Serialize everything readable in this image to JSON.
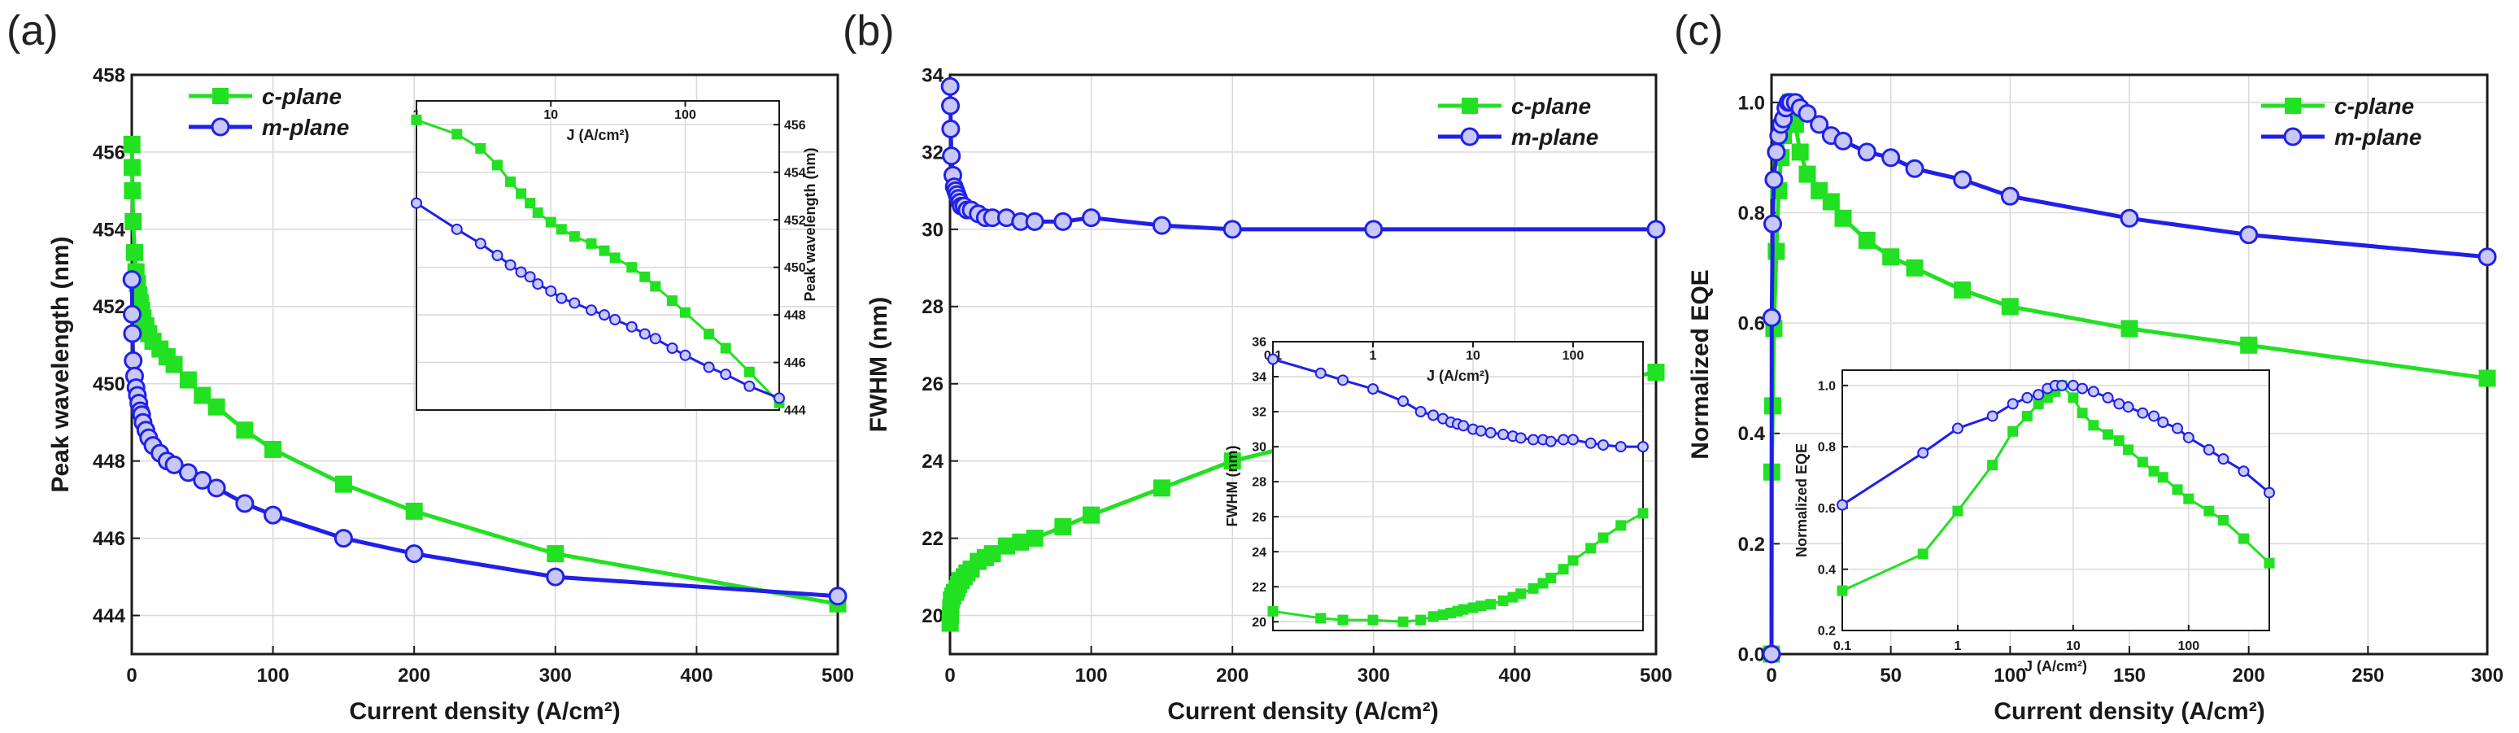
{
  "colors": {
    "c_plane": "#22e022",
    "m_plane": "#2020e8",
    "grid": "#d9d9d9",
    "axis": "#1a1a1a"
  },
  "chart_data": [
    {
      "panel": "(a)",
      "type": "line",
      "xlabel": "Current density (A/cm²)",
      "ylabel": "Peak wavelength (nm)",
      "xlim": [
        0,
        500
      ],
      "ylim": [
        443,
        458
      ],
      "xticks": [
        "0",
        "100",
        "200",
        "300",
        "400",
        "500"
      ],
      "yticks": [
        "444",
        "446",
        "448",
        "450",
        "452",
        "454",
        "456",
        "458"
      ],
      "legend": {
        "position": "top-left",
        "entries": [
          "c-plane",
          "m-plane"
        ]
      },
      "series": [
        {
          "name": "c-plane",
          "x": [
            0.1,
            0.3,
            0.5,
            1,
            2,
            3,
            4,
            5,
            6,
            7,
            8,
            10,
            12,
            15,
            20,
            25,
            30,
            40,
            50,
            60,
            80,
            100,
            150,
            200,
            300,
            500
          ],
          "y": [
            456.2,
            455.6,
            455.0,
            454.2,
            453.4,
            452.9,
            452.6,
            452.3,
            452.1,
            451.9,
            451.7,
            451.5,
            451.3,
            451.1,
            450.9,
            450.7,
            450.5,
            450.1,
            449.7,
            449.4,
            448.8,
            448.3,
            447.4,
            446.7,
            445.6,
            444.3
          ]
        },
        {
          "name": "m-plane",
          "x": [
            0.1,
            0.3,
            0.5,
            1,
            2,
            3,
            4,
            5,
            6,
            7,
            8,
            10,
            12,
            15,
            20,
            25,
            30,
            40,
            50,
            60,
            80,
            100,
            150,
            200,
            300,
            500
          ],
          "y": [
            452.7,
            451.8,
            451.3,
            450.6,
            450.2,
            449.9,
            449.7,
            449.5,
            449.3,
            449.2,
            449.0,
            448.8,
            448.6,
            448.4,
            448.2,
            448.0,
            447.9,
            447.7,
            447.5,
            447.3,
            446.9,
            446.6,
            446.0,
            445.6,
            445.0,
            444.5
          ]
        }
      ],
      "inset": {
        "xlabel": "J (A/cm²)",
        "ylabel": "Peak wavelength (nm)",
        "xscale": "log",
        "xlim": [
          1,
          500
        ],
        "ylim": [
          444,
          457
        ],
        "xticks": [
          "1",
          "10",
          "100"
        ],
        "yticks": [
          "444",
          "446",
          "448",
          "450",
          "452",
          "454",
          "456"
        ],
        "series": [
          {
            "name": "c-plane",
            "x": [
              1,
              2,
              3,
              4,
              5,
              6,
              7,
              8,
              10,
              12,
              15,
              20,
              25,
              30,
              40,
              50,
              60,
              80,
              100,
              150,
              200,
              300,
              500
            ],
            "y": [
              456.2,
              455.6,
              455.0,
              454.3,
              453.6,
              453.1,
              452.7,
              452.3,
              451.9,
              451.6,
              451.3,
              451.0,
              450.7,
              450.4,
              450.0,
              449.6,
              449.2,
              448.6,
              448.1,
              447.2,
              446.6,
              445.6,
              444.3
            ]
          },
          {
            "name": "m-plane",
            "x": [
              1,
              2,
              3,
              4,
              5,
              6,
              7,
              8,
              10,
              12,
              15,
              20,
              25,
              30,
              40,
              50,
              60,
              80,
              100,
              150,
              200,
              300,
              500
            ],
            "y": [
              452.7,
              451.6,
              451.0,
              450.5,
              450.1,
              449.8,
              449.6,
              449.3,
              449.0,
              448.7,
              448.5,
              448.2,
              448.0,
              447.8,
              447.5,
              447.2,
              447.0,
              446.6,
              446.3,
              445.8,
              445.5,
              445.0,
              444.5
            ]
          }
        ]
      }
    },
    {
      "panel": "(b)",
      "type": "line",
      "xlabel": "Current density (A/cm²)",
      "ylabel": "FWHM (nm)",
      "xlim": [
        0,
        500
      ],
      "ylim": [
        19,
        34
      ],
      "xticks": [
        "0",
        "100",
        "200",
        "300",
        "400",
        "500"
      ],
      "yticks": [
        "20",
        "22",
        "24",
        "26",
        "28",
        "30",
        "32",
        "34"
      ],
      "legend": {
        "position": "top-right",
        "entries": [
          "c-plane",
          "m-plane"
        ]
      },
      "series": [
        {
          "name": "c-plane",
          "x": [
            0.1,
            0.3,
            0.5,
            1,
            2,
            3,
            4,
            5,
            6,
            7,
            8,
            10,
            12,
            15,
            20,
            25,
            30,
            40,
            50,
            60,
            80,
            100,
            150,
            200,
            300,
            500
          ],
          "y": [
            19.8,
            20.0,
            20.2,
            20.4,
            20.5,
            20.6,
            20.6,
            20.7,
            20.8,
            20.9,
            20.9,
            21.0,
            21.1,
            21.2,
            21.4,
            21.5,
            21.6,
            21.8,
            21.9,
            22.0,
            22.3,
            22.6,
            23.3,
            24.0,
            24.9,
            26.3
          ]
        },
        {
          "name": "m-plane",
          "x": [
            0.1,
            0.3,
            0.5,
            1,
            2,
            3,
            4,
            5,
            6,
            7,
            8,
            10,
            12,
            15,
            20,
            25,
            30,
            40,
            50,
            60,
            80,
            100,
            150,
            200,
            300,
            500
          ],
          "y": [
            33.7,
            33.2,
            32.6,
            31.9,
            31.4,
            31.1,
            31.0,
            30.9,
            30.8,
            30.7,
            30.6,
            30.6,
            30.5,
            30.5,
            30.4,
            30.3,
            30.3,
            30.3,
            30.2,
            30.2,
            30.2,
            30.3,
            30.1,
            30.0,
            30.0,
            30.0
          ]
        }
      ],
      "inset": {
        "xlabel": "J (A/cm²)",
        "ylabel": "FWHM (nm)",
        "xscale": "log",
        "xlim": [
          0.1,
          500
        ],
        "ylim": [
          19.5,
          36
        ],
        "xticks": [
          "0.1",
          "1",
          "10",
          "100"
        ],
        "yticks": [
          "20",
          "22",
          "24",
          "26",
          "28",
          "30",
          "32",
          "34",
          "36"
        ],
        "series": [
          {
            "name": "c-plane",
            "x": [
              0.1,
              0.3,
              0.5,
              1,
              2,
              3,
              4,
              5,
              6,
              7,
              8,
              10,
              12,
              15,
              20,
              25,
              30,
              40,
              50,
              60,
              80,
              100,
              150,
              200,
              300,
              500
            ],
            "y": [
              20.6,
              20.2,
              20.1,
              20.1,
              20.0,
              20.1,
              20.3,
              20.4,
              20.5,
              20.6,
              20.7,
              20.8,
              20.9,
              21.0,
              21.2,
              21.4,
              21.6,
              21.9,
              22.2,
              22.5,
              23.0,
              23.5,
              24.2,
              24.8,
              25.5,
              26.2
            ]
          },
          {
            "name": "m-plane",
            "x": [
              0.1,
              0.3,
              0.5,
              1,
              2,
              3,
              4,
              5,
              6,
              7,
              8,
              10,
              12,
              15,
              20,
              25,
              30,
              40,
              50,
              60,
              80,
              100,
              150,
              200,
              300,
              500
            ],
            "y": [
              35.0,
              34.2,
              33.8,
              33.3,
              32.6,
              32.0,
              31.8,
              31.6,
              31.4,
              31.3,
              31.2,
              31.0,
              30.9,
              30.8,
              30.7,
              30.6,
              30.5,
              30.4,
              30.4,
              30.3,
              30.4,
              30.4,
              30.2,
              30.1,
              30.0,
              30.0
            ]
          }
        ]
      }
    },
    {
      "panel": "(c)",
      "type": "line",
      "xlabel": "Current density (A/cm²)",
      "ylabel": "Normalized EQE",
      "xlim": [
        0,
        300
      ],
      "ylim": [
        0.0,
        1.05
      ],
      "xticks": [
        "0",
        "50",
        "100",
        "150",
        "200",
        "250",
        "300"
      ],
      "yticks": [
        "0.0",
        "0.2",
        "0.4",
        "0.6",
        "0.8",
        "1.0"
      ],
      "legend": {
        "position": "top-right",
        "entries": [
          "c-plane",
          "m-plane"
        ]
      },
      "series": [
        {
          "name": "c-plane",
          "x": [
            0,
            0.1,
            0.5,
            1,
            2,
            3,
            4,
            5,
            6,
            7,
            8,
            10,
            12,
            15,
            20,
            25,
            30,
            40,
            50,
            60,
            80,
            100,
            150,
            200,
            300
          ],
          "y": [
            0.0,
            0.33,
            0.45,
            0.59,
            0.73,
            0.84,
            0.9,
            0.94,
            0.96,
            0.98,
            1.0,
            0.96,
            0.91,
            0.87,
            0.84,
            0.82,
            0.79,
            0.75,
            0.72,
            0.7,
            0.66,
            0.63,
            0.59,
            0.56,
            0.5
          ]
        },
        {
          "name": "m-plane",
          "x": [
            0,
            0.1,
            0.5,
            1,
            2,
            3,
            4,
            5,
            6,
            7,
            8,
            10,
            12,
            15,
            20,
            25,
            30,
            40,
            50,
            60,
            80,
            100,
            150,
            200,
            300
          ],
          "y": [
            0.0,
            0.61,
            0.78,
            0.86,
            0.91,
            0.94,
            0.96,
            0.97,
            0.99,
            1.0,
            1.0,
            1.0,
            0.99,
            0.98,
            0.96,
            0.94,
            0.93,
            0.91,
            0.9,
            0.88,
            0.86,
            0.83,
            0.79,
            0.76,
            0.72
          ]
        }
      ],
      "inset": {
        "xlabel": "J (A/cm²)",
        "ylabel": "Normalized EQE",
        "xscale": "log",
        "xlim": [
          0.1,
          500
        ],
        "ylim": [
          0.2,
          1.05
        ],
        "xticks": [
          "0.1",
          "1",
          "10",
          "100"
        ],
        "yticks": [
          "0.2",
          "0.4",
          "0.6",
          "0.8",
          "1.0"
        ],
        "series": [
          {
            "name": "c-plane",
            "x": [
              0.1,
              0.5,
              1,
              2,
              3,
              4,
              5,
              6,
              7,
              8,
              10,
              12,
              15,
              20,
              25,
              30,
              40,
              50,
              60,
              80,
              100,
              150,
              200,
              300,
              500
            ],
            "y": [
              0.33,
              0.45,
              0.59,
              0.74,
              0.85,
              0.9,
              0.94,
              0.96,
              0.98,
              1.0,
              0.96,
              0.91,
              0.87,
              0.84,
              0.82,
              0.79,
              0.75,
              0.72,
              0.7,
              0.66,
              0.63,
              0.59,
              0.56,
              0.5,
              0.42
            ]
          },
          {
            "name": "m-plane",
            "x": [
              0.1,
              0.5,
              1,
              2,
              3,
              4,
              5,
              6,
              7,
              8,
              10,
              12,
              15,
              20,
              25,
              30,
              40,
              50,
              60,
              80,
              100,
              150,
              200,
              300,
              500
            ],
            "y": [
              0.61,
              0.78,
              0.86,
              0.9,
              0.94,
              0.96,
              0.97,
              0.99,
              1.0,
              1.0,
              1.0,
              0.99,
              0.98,
              0.96,
              0.94,
              0.93,
              0.91,
              0.9,
              0.88,
              0.86,
              0.83,
              0.79,
              0.76,
              0.72,
              0.65
            ]
          }
        ]
      }
    }
  ]
}
